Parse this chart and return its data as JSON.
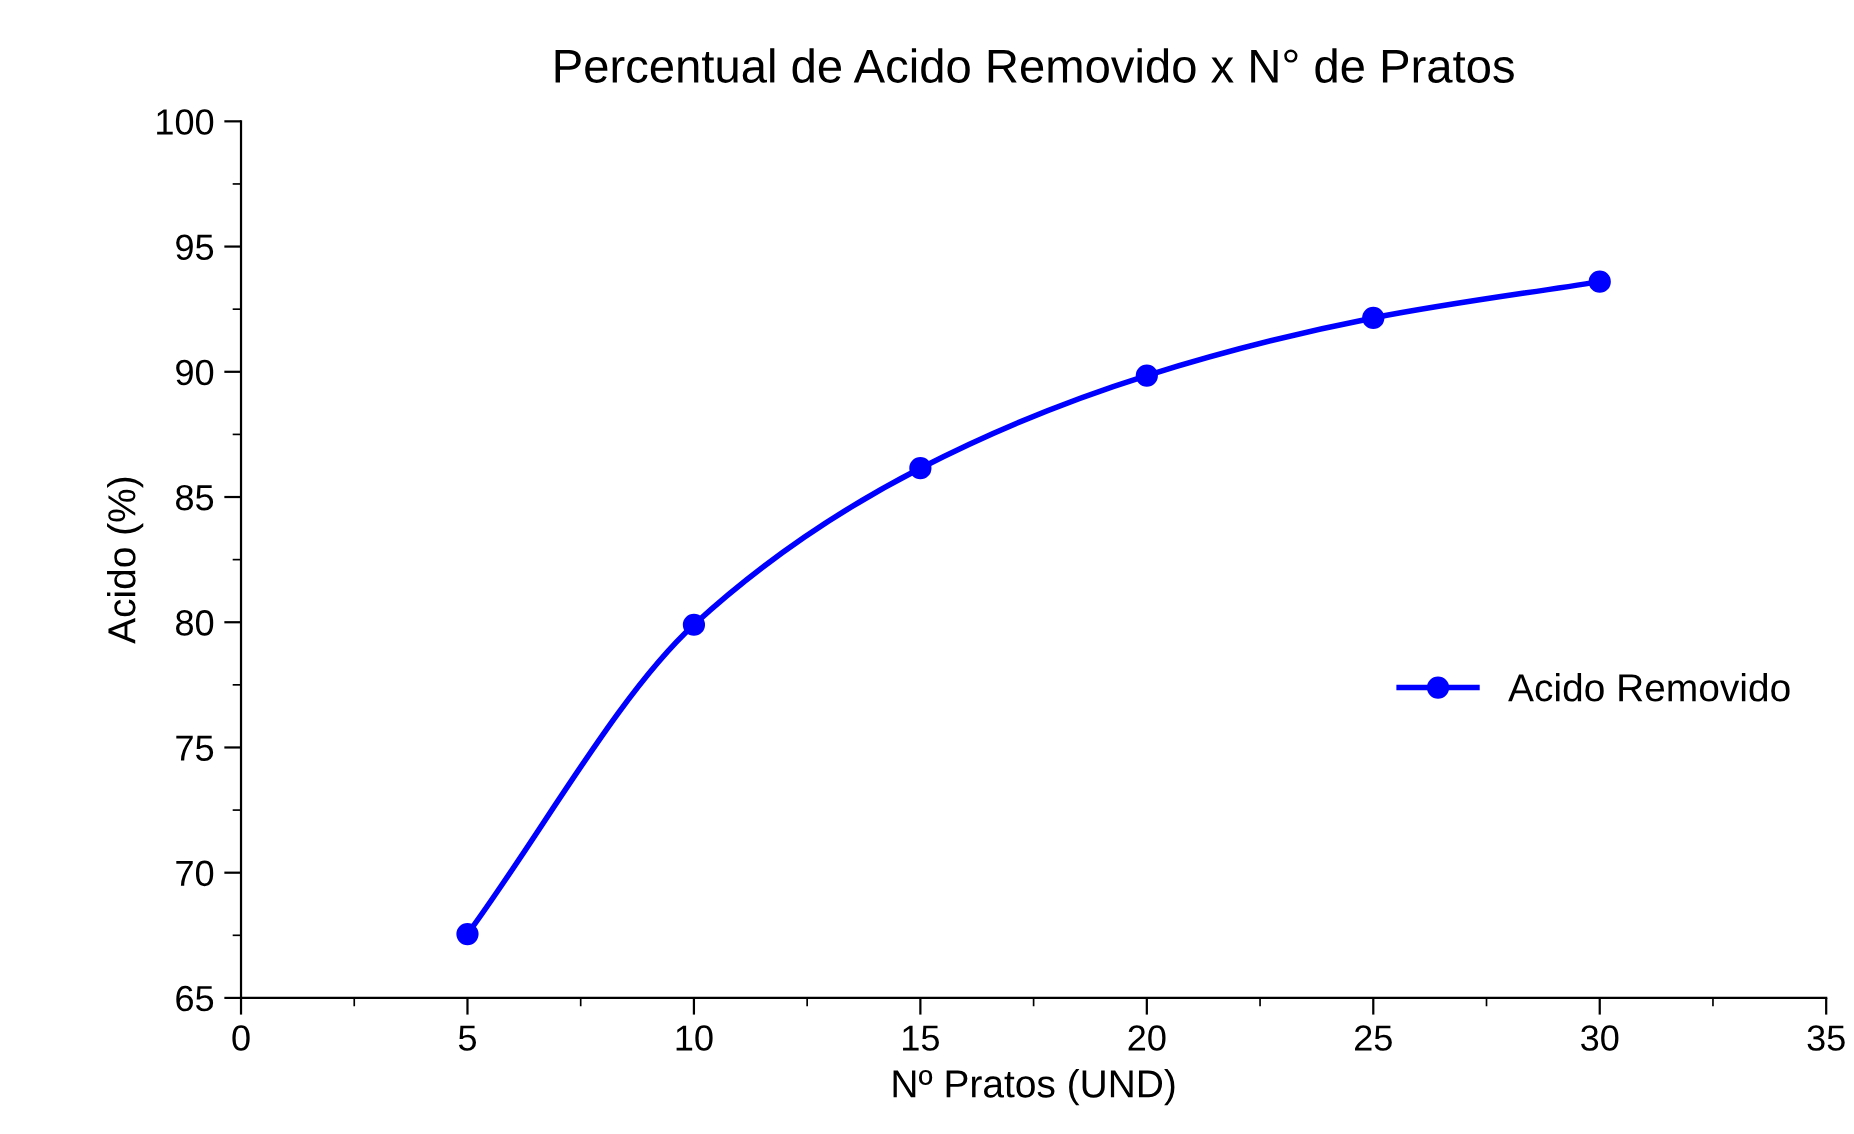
{
  "chart_data": {
    "type": "line",
    "title": "Percentual de Acido Removido x N° de Pratos",
    "xlabel": "Nº Pratos (UND)",
    "ylabel": "Acido (%)",
    "x": [
      5,
      10,
      15,
      20,
      25,
      30
    ],
    "series": [
      {
        "name": "Acido Removido",
        "color": "#0000ff",
        "values": [
          67.55,
          79.9,
          86.15,
          89.85,
          92.15,
          93.6
        ]
      }
    ],
    "xlim": [
      0,
      35
    ],
    "xticks": [
      0,
      5,
      10,
      15,
      20,
      25,
      30,
      35
    ],
    "ylim": [
      65,
      100
    ],
    "yticks": [
      65,
      70,
      75,
      80,
      85,
      90,
      95,
      100
    ],
    "marker": "circle",
    "line_style": "solid",
    "legend": "right",
    "grid": false
  }
}
